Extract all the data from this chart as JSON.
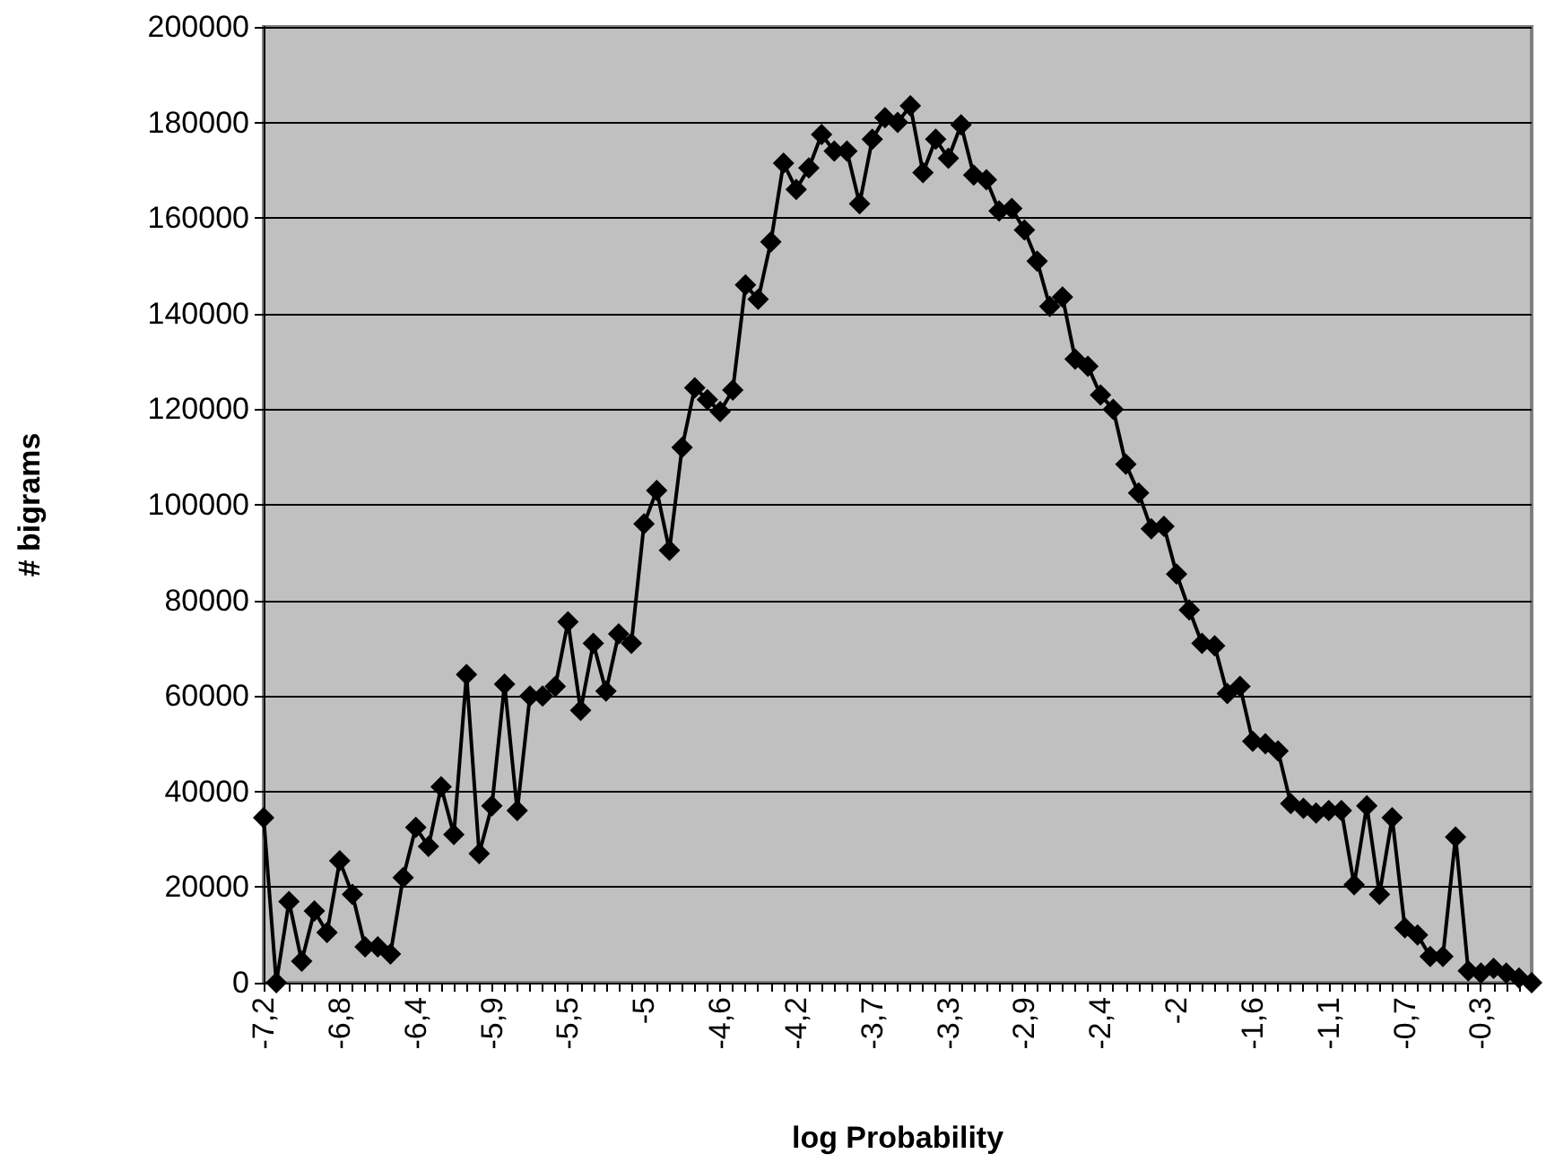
{
  "chart_data": {
    "type": "line",
    "xlabel": "log Probability",
    "ylabel": "# bigrams",
    "categories": [
      "-7,2",
      null,
      null,
      null,
      null,
      null,
      "-6,8",
      null,
      null,
      null,
      null,
      null,
      "-6,4",
      null,
      null,
      null,
      null,
      null,
      "-5,9",
      null,
      null,
      null,
      null,
      null,
      "-5,5",
      null,
      null,
      null,
      null,
      null,
      "-5",
      null,
      null,
      null,
      null,
      null,
      "-4,6",
      null,
      null,
      null,
      null,
      null,
      "-4,2",
      null,
      null,
      null,
      null,
      null,
      "-3,7",
      null,
      null,
      null,
      null,
      null,
      "-3,3",
      null,
      null,
      null,
      null,
      null,
      "-2,9",
      null,
      null,
      null,
      null,
      null,
      "-2,4",
      null,
      null,
      null,
      null,
      null,
      "-2",
      null,
      null,
      null,
      null,
      null,
      "-1,6",
      null,
      null,
      null,
      null,
      null,
      "-1,1",
      null,
      null,
      null,
      null,
      null,
      "-0,7",
      null,
      null,
      null,
      null,
      null,
      "-0,3",
      null,
      null,
      null,
      null
    ],
    "series": [
      {
        "color": "#000000",
        "values": [
          34500,
          0,
          17000,
          4500,
          15000,
          10500,
          25500,
          18500,
          7500,
          7500,
          6000,
          22000,
          32500,
          28500,
          41000,
          31000,
          64500,
          27000,
          37000,
          62500,
          36000,
          60000,
          60000,
          62000,
          75500,
          57000,
          71000,
          61000,
          73000,
          71000,
          96000,
          103000,
          90500,
          112000,
          124500,
          122000,
          119500,
          124000,
          146000,
          143000,
          155000,
          171500,
          166000,
          170500,
          177500,
          174000,
          174000,
          163000,
          176500,
          181000,
          180000,
          183500,
          169500,
          176500,
          172500,
          179500,
          169000,
          168000,
          161500,
          162000,
          157500,
          151000,
          141500,
          143500,
          130500,
          129000,
          123000,
          120000,
          108500,
          102500,
          95000,
          95500,
          85500,
          78000,
          71000,
          70500,
          60500,
          62000,
          50500,
          50000,
          48500,
          37500,
          36500,
          35500,
          36000,
          36000,
          20500,
          37000,
          18500,
          34500,
          11500,
          10000,
          5500,
          5500,
          30500,
          2500,
          2000,
          3000,
          2000,
          1000,
          0
        ]
      }
    ],
    "ylim": [
      0,
      200000
    ],
    "yticks": [
      0,
      20000,
      40000,
      60000,
      80000,
      100000,
      120000,
      140000,
      160000,
      180000,
      200000
    ],
    "grid": "y",
    "marker": "diamond",
    "line_style": "solid"
  }
}
